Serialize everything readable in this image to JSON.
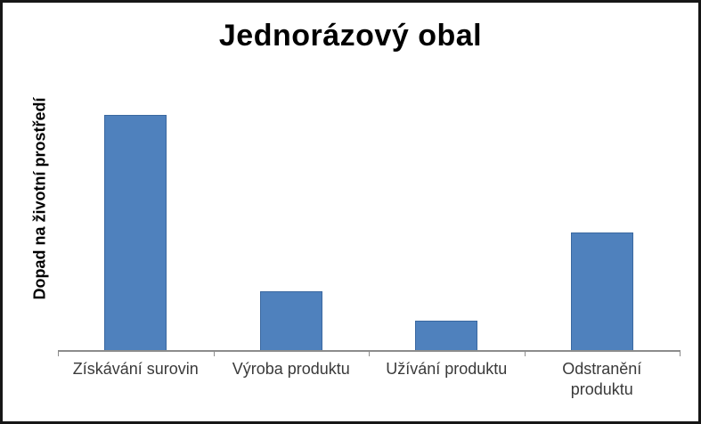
{
  "chart_data": {
    "type": "bar",
    "title": "Jednorázový obal",
    "xlabel": "",
    "ylabel": "Dopad na životní prostředí",
    "categories": [
      "Získávání surovin",
      "Výroba produktu",
      "Užívání produktu",
      "Odstranění produktu"
    ],
    "values": [
      8,
      2,
      1,
      4
    ],
    "ylim": [
      0,
      8.8
    ],
    "grid": false,
    "legend": null,
    "y_axis_ticks_visible": false,
    "colors": {
      "bar_fill": "#4F81BD",
      "bar_border": "#3A68A0",
      "axis_line": "#8C8C8C",
      "tick": "#8C8C8C",
      "category_label": "#3A3A3A",
      "title": "#000000",
      "frame_border": "#161616"
    }
  }
}
